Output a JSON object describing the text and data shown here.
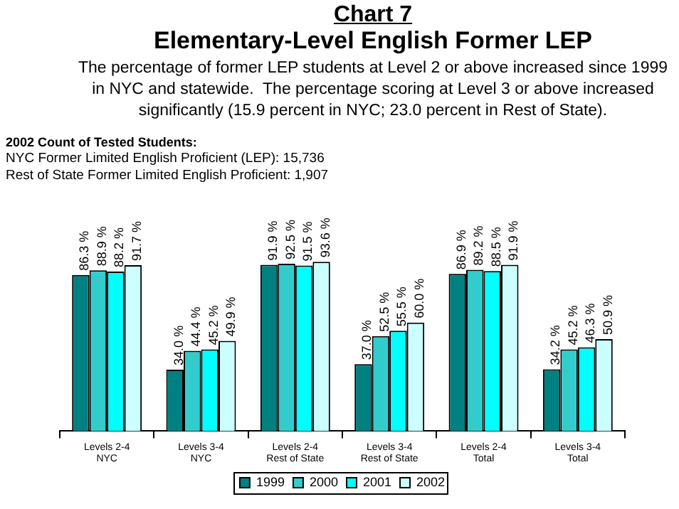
{
  "chart_data": {
    "type": "bar",
    "title": "Chart 7",
    "subtitle": "Elementary-Level English Former LEP",
    "annotations": [
      "The percentage of former LEP students at Level 2 or above increased since 1999 in NYC and statewide.  The percentage scoring at Level 3 or above increased significantly (15.9 percent in NYC; 23.0 percent in Rest of State).",
      "2002 Count of Tested Students:",
      "NYC Former Limited English Proficient (LEP): 15,736",
      "Rest of State Former Limited English Proficient: 1,907"
    ],
    "categories": [
      "Levels 2-4\nNYC",
      "Levels 3-4\nNYC",
      "Levels 2-4\nRest of State",
      "Levels 3-4\nRest of State",
      "Levels 2-4\nTotal",
      "Levels 3-4\nTotal"
    ],
    "legend": "bottom",
    "data_labels": true,
    "series": [
      {
        "name": "1999",
        "color": "#008080",
        "values": [
          86.3,
          34.0,
          91.9,
          37.0,
          86.9,
          34.2
        ],
        "value_labels": [
          "86.3 %",
          "34.0 %",
          "91.9 %",
          "37.0 %",
          "86.9 %",
          "34.2 %"
        ]
      },
      {
        "name": "2000",
        "color": "#33cccc",
        "values": [
          88.9,
          44.4,
          92.5,
          52.5,
          89.2,
          45.2
        ],
        "value_labels": [
          "88.9 %",
          "44.4 %",
          "92.5 %",
          "52.5 %",
          "89.2 %",
          "45.2 %"
        ]
      },
      {
        "name": "2001",
        "color": "#00ffff",
        "values": [
          88.2,
          45.2,
          91.5,
          55.5,
          88.5,
          46.3
        ],
        "value_labels": [
          "88.2 %",
          "45.2 %",
          "91.5 %",
          "55.5 %",
          "88.5 %",
          "46.3 %"
        ]
      },
      {
        "name": "2002",
        "color": "#ccffff",
        "values": [
          91.7,
          49.9,
          93.6,
          60.0,
          91.9,
          50.9
        ],
        "value_labels": [
          "91.7 %",
          "49.9 %",
          "93.6 %",
          "60.0 %",
          "91.9 %",
          "50.9 %"
        ]
      }
    ]
  }
}
